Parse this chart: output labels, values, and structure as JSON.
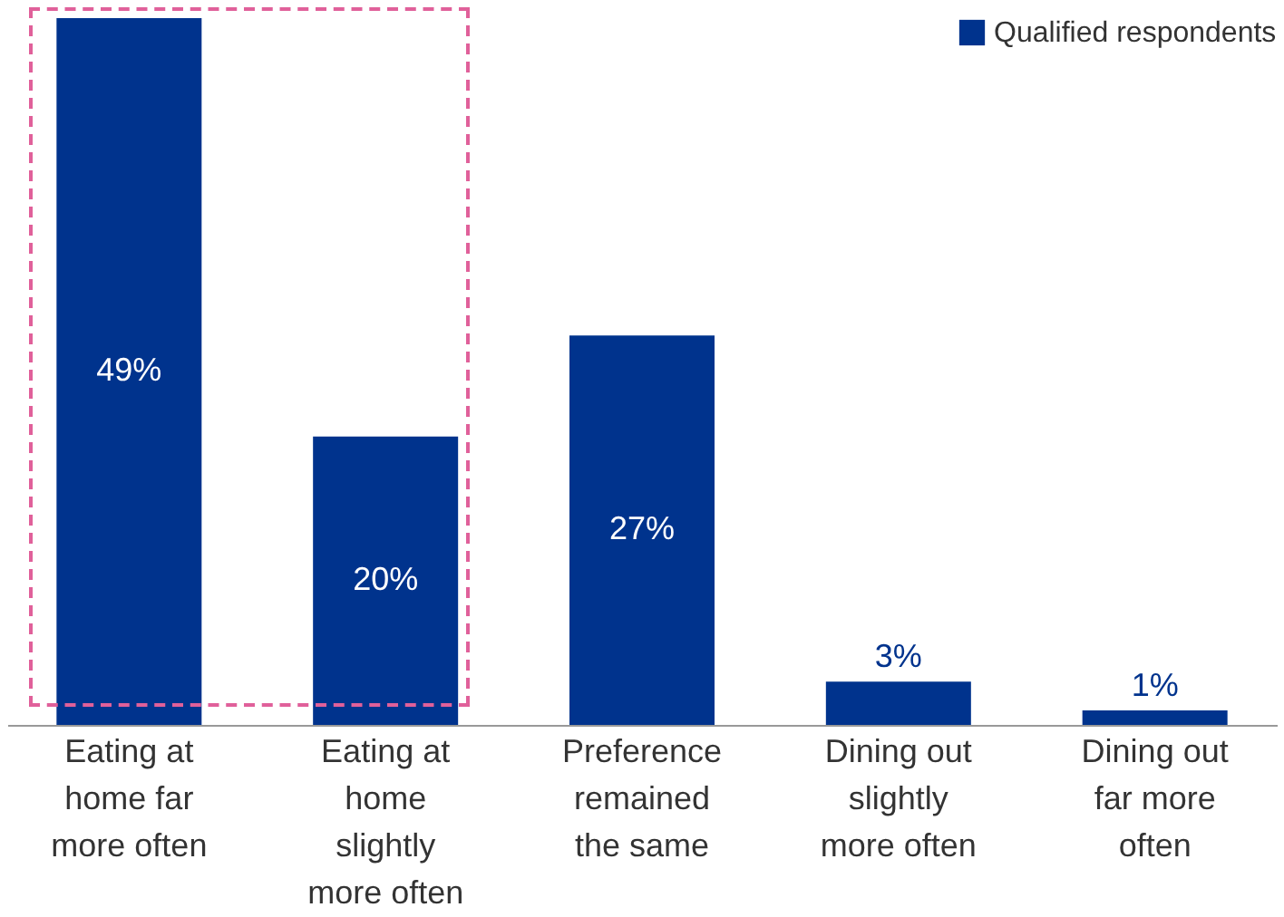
{
  "chart_data": {
    "type": "bar",
    "categories": [
      "Eating at home far more often",
      "Eating at home slightly more often",
      "Preference remained the same",
      "Dining out slightly more often",
      "Dining out far more often"
    ],
    "series": [
      {
        "name": "Qualified respondents",
        "color": "#00338d",
        "values": [
          49,
          20,
          27,
          3,
          1
        ],
        "value_labels": [
          "49%",
          "20%",
          "27%",
          "3%",
          "1%"
        ]
      }
    ],
    "legend": "top right"
  }
}
